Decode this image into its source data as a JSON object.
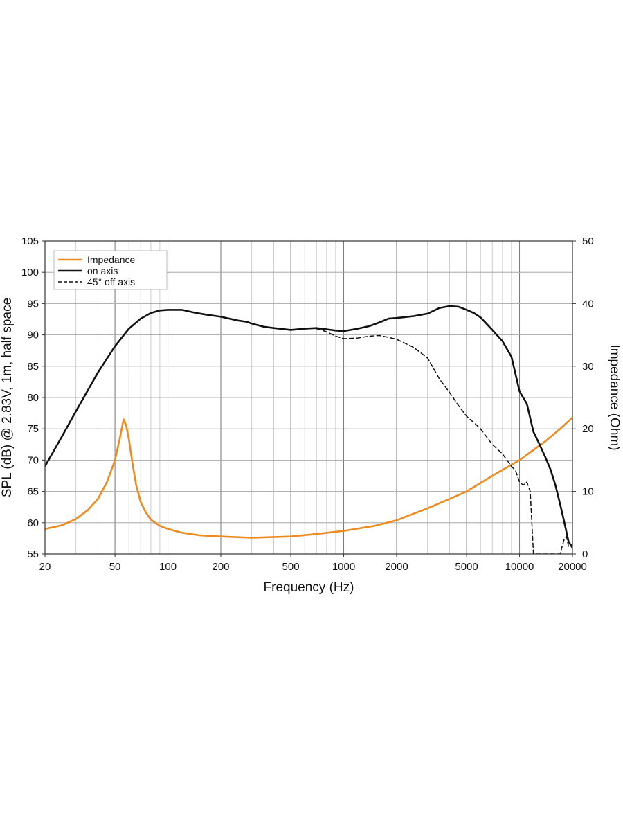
{
  "chart_data": {
    "type": "line",
    "title": "",
    "xlabel": "Frequency (Hz)",
    "ylabel": "SPL (dB) @ 2.83V, 1m, half space",
    "y2label": "Impedance (Ohm)",
    "xscale": "log",
    "xlim": [
      20,
      20000
    ],
    "ylim": [
      55,
      105
    ],
    "y2lim": [
      0,
      50
    ],
    "grid": true,
    "legend_position": "top-left",
    "x_ticks": [
      20,
      50,
      100,
      200,
      500,
      1000,
      2000,
      5000,
      10000,
      20000
    ],
    "x_tick_labels": [
      "20",
      "50",
      "100",
      "200",
      "500",
      "1000",
      "2000",
      "5000",
      "10000",
      "20000"
    ],
    "y_ticks": [
      55,
      60,
      65,
      70,
      75,
      80,
      85,
      90,
      95,
      100,
      105
    ],
    "y_tick_labels": [
      "55",
      "60",
      "65",
      "70",
      "75",
      "80",
      "85",
      "90",
      "95",
      "100",
      "105"
    ],
    "y2_ticks": [
      0,
      10,
      20,
      30,
      40,
      50
    ],
    "y2_tick_labels": [
      "0",
      "10",
      "20",
      "30",
      "40",
      "50"
    ],
    "series": [
      {
        "name": "Impedance",
        "axis": "right",
        "color": "#ee8a1e",
        "style": "solid",
        "x": [
          20,
          25,
          30,
          35,
          40,
          45,
          50,
          53,
          56,
          58,
          60,
          63,
          66,
          70,
          75,
          80,
          90,
          100,
          120,
          150,
          200,
          300,
          500,
          700,
          1000,
          1500,
          2000,
          3000,
          4000,
          5000,
          7000,
          10000,
          14000,
          17000,
          20000
        ],
        "values": [
          4.0,
          4.6,
          5.6,
          7.0,
          8.8,
          11.5,
          15.0,
          18.2,
          21.5,
          20.5,
          18.3,
          14.3,
          11.0,
          8.3,
          6.6,
          5.5,
          4.5,
          4.0,
          3.4,
          3.0,
          2.8,
          2.6,
          2.8,
          3.2,
          3.7,
          4.5,
          5.4,
          7.3,
          8.8,
          10.0,
          12.5,
          15.0,
          18.0,
          20.0,
          21.8
        ]
      },
      {
        "name": "on axis",
        "axis": "left",
        "color": "#111111",
        "style": "solid",
        "x": [
          20,
          25,
          30,
          40,
          50,
          60,
          70,
          80,
          90,
          100,
          110,
          120,
          140,
          160,
          200,
          250,
          280,
          300,
          350,
          400,
          500,
          600,
          700,
          800,
          900,
          1000,
          1200,
          1400,
          1600,
          1800,
          2000,
          2500,
          3000,
          3500,
          4000,
          4500,
          5000,
          5500,
          6000,
          7000,
          8000,
          9000,
          10000,
          11000,
          12000,
          13000,
          14000,
          15000,
          16000,
          17000,
          18000,
          19000,
          20000
        ],
        "values": [
          69.0,
          73.8,
          77.8,
          84.0,
          88.2,
          91.0,
          92.6,
          93.5,
          93.9,
          94.0,
          94.0,
          94.0,
          93.6,
          93.3,
          92.9,
          92.3,
          92.1,
          91.8,
          91.3,
          91.1,
          90.8,
          91.0,
          91.1,
          90.9,
          90.7,
          90.6,
          91.0,
          91.4,
          92.0,
          92.6,
          92.7,
          93.0,
          93.4,
          94.3,
          94.6,
          94.5,
          94.0,
          93.5,
          92.8,
          90.8,
          89.0,
          86.5,
          81.0,
          79.0,
          74.5,
          72.5,
          70.5,
          68.5,
          66.0,
          63.0,
          60.0,
          57.0,
          56.0
        ]
      },
      {
        "name": "45° off axis",
        "axis": "left",
        "color": "#111111",
        "style": "dashed",
        "x": [
          700,
          800,
          900,
          1000,
          1200,
          1400,
          1600,
          1800,
          2000,
          2500,
          3000,
          3500,
          4000,
          4500,
          5000,
          5500,
          6000,
          7000,
          8000,
          9000,
          9500,
          10000,
          10500,
          11000,
          11500,
          12000,
          17000,
          18000,
          18500,
          19000,
          20000
        ],
        "values": [
          91.0,
          90.5,
          89.8,
          89.4,
          89.5,
          89.8,
          89.9,
          89.6,
          89.3,
          88.0,
          86.3,
          83.0,
          80.8,
          78.7,
          77.0,
          76.0,
          75.0,
          72.5,
          71.0,
          69.0,
          68.3,
          66.5,
          66.0,
          66.5,
          65.0,
          55.0,
          55.0,
          57.5,
          57.8,
          56.2,
          56.5
        ]
      }
    ]
  }
}
